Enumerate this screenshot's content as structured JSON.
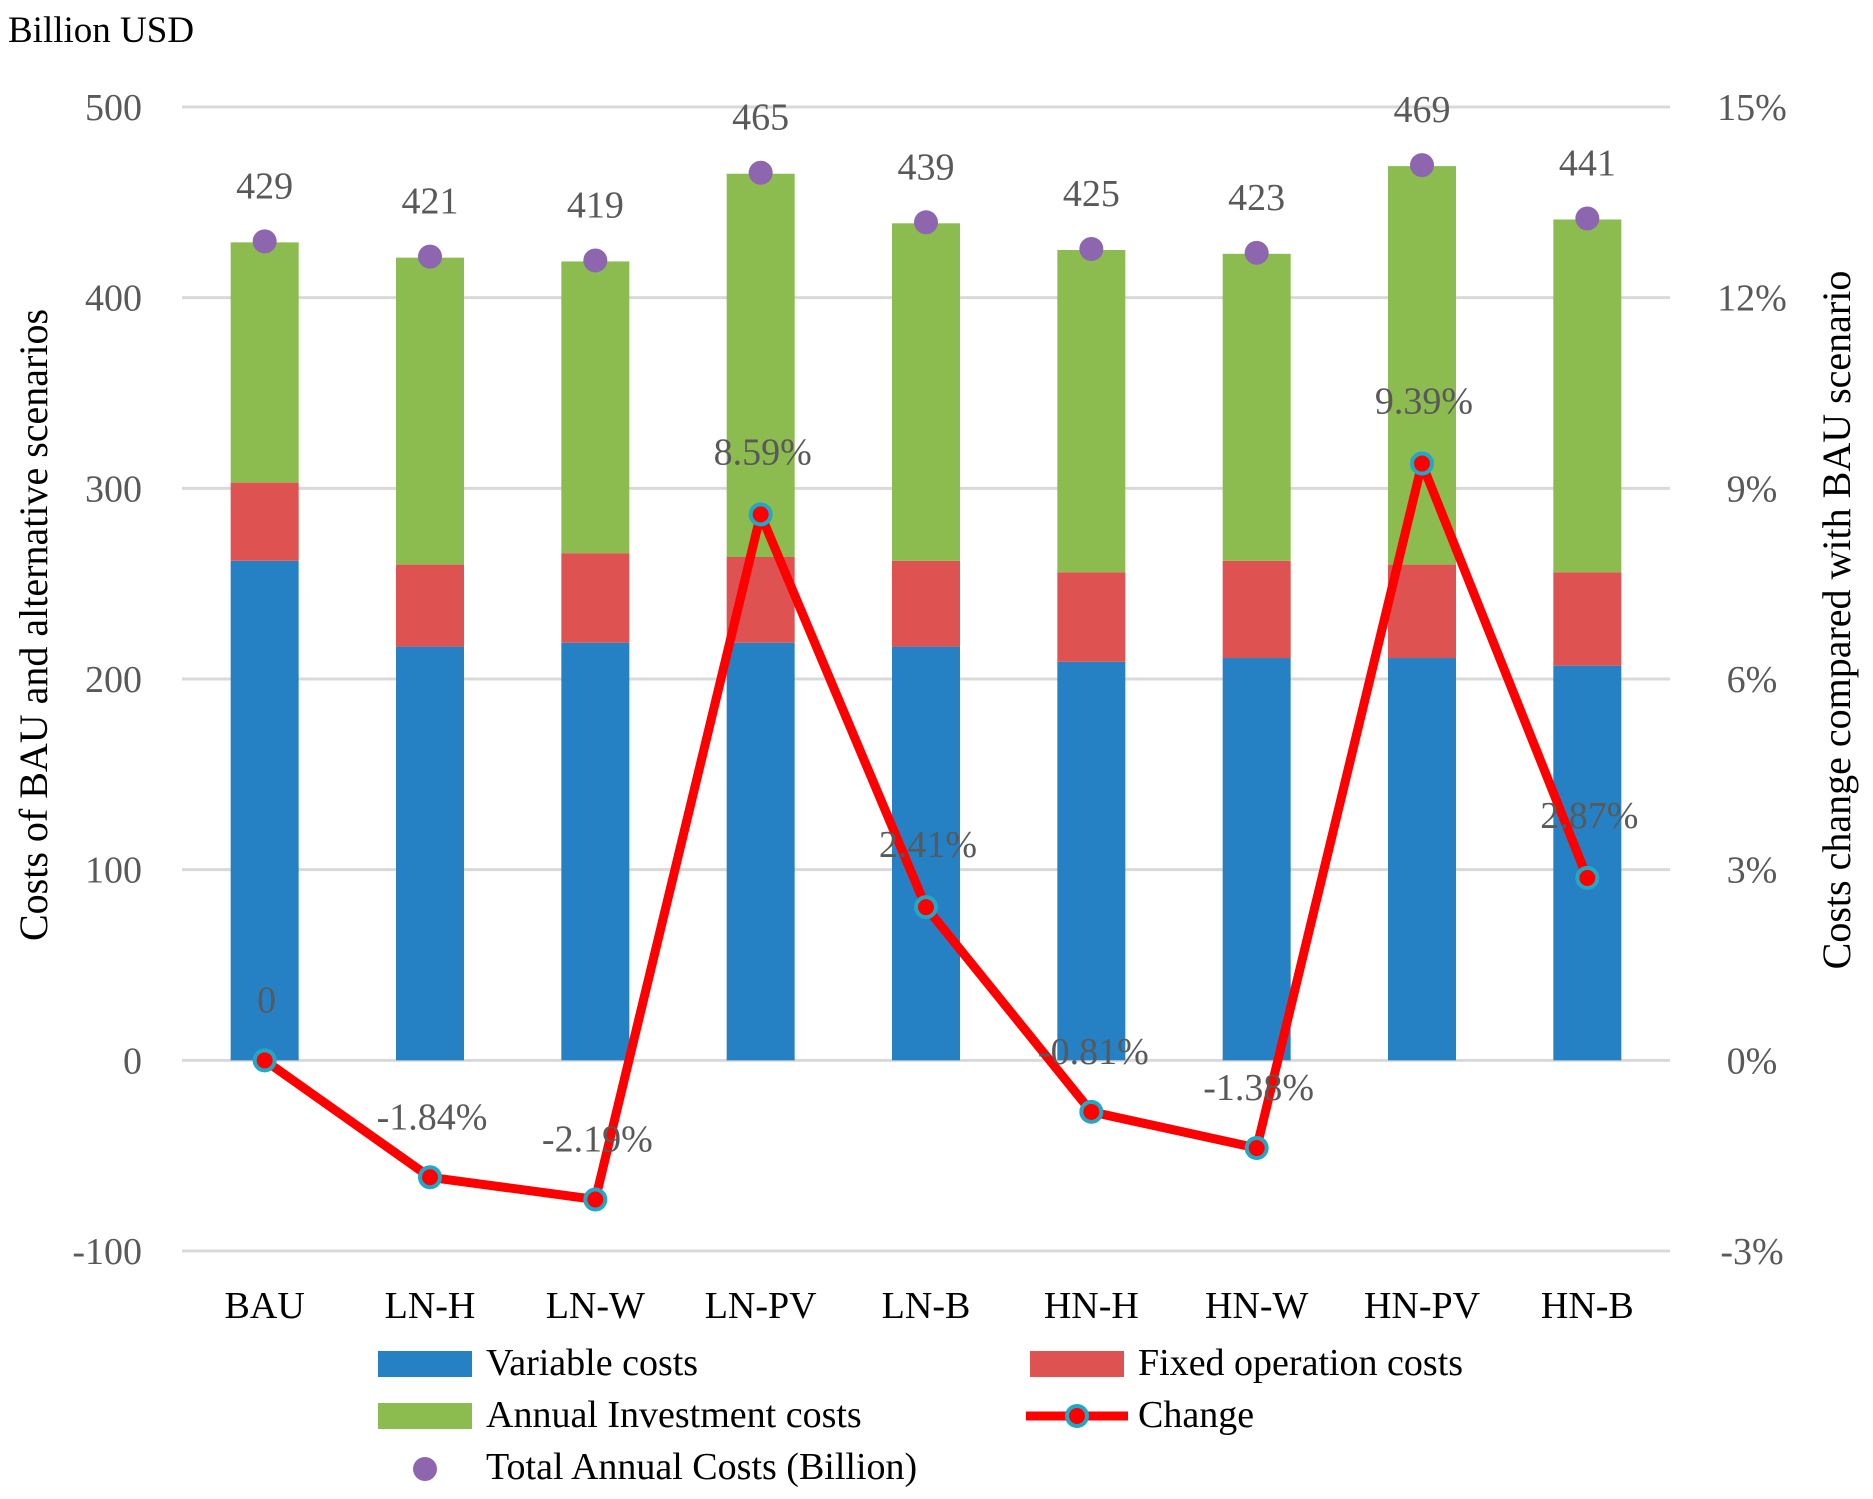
{
  "chart_data": {
    "type": "bar",
    "stacked": true,
    "unit_label": "Billion  USD",
    "ylabel_left": "Costs of  BAU and alternative scenarios",
    "ylabel_right": "Costs change compared with BAU scenario",
    "ylim_left": [
      -100,
      500
    ],
    "yticks_left": [
      500,
      400,
      300,
      200,
      100,
      0,
      -100
    ],
    "ylim_right": [
      -3,
      15
    ],
    "yticks_right": [
      "15%",
      "12%",
      "9%",
      "6%",
      "3%",
      "0%",
      "-3%"
    ],
    "yticks_right_values": [
      15,
      12,
      9,
      6,
      3,
      0,
      -3
    ],
    "grid": true,
    "categories": [
      "BAU",
      "LN-H",
      "LN-W",
      "LN-PV",
      "LN-B",
      "HN-H",
      "HN-W",
      "HN-PV",
      "HN-B"
    ],
    "series": [
      {
        "name": "Variable costs",
        "color": "#2581c4",
        "values": [
          262,
          217,
          219,
          219,
          217,
          209,
          211,
          211,
          207
        ]
      },
      {
        "name": "Fixed operation costs",
        "color": "#de5352",
        "values": [
          41,
          43,
          47,
          45,
          45,
          47,
          51,
          49,
          49
        ]
      },
      {
        "name": "Annual Investment costs",
        "color": "#8cbb50",
        "values": [
          126,
          161,
          153,
          201,
          177,
          169,
          161,
          209,
          185
        ]
      }
    ],
    "totals": {
      "name": "Total Annual Costs (Billion)",
      "color": "#8e66b0",
      "values": [
        429,
        421,
        419,
        465,
        439,
        425,
        423,
        469,
        441
      ],
      "labels": [
        "429",
        "421",
        "419",
        "465",
        "439",
        "425",
        "423",
        "469",
        "441"
      ]
    },
    "change": {
      "name": "Change",
      "axis": "right",
      "line_color": "#ff0000",
      "marker_fill": "#ff0000",
      "marker_edge": "#1fa9c6",
      "values": [
        0,
        -1.84,
        -2.19,
        8.59,
        2.41,
        -0.81,
        -1.38,
        9.39,
        2.87
      ],
      "labels": [
        "0",
        "-1.84%",
        "-2.19%",
        "8.59%",
        "2.41%",
        "-0.81%",
        "-1.38%",
        "9.39%",
        "2.87%"
      ]
    },
    "legend": {
      "position": "bottom",
      "items": [
        {
          "key": "variable",
          "label": "Variable costs",
          "kind": "bar",
          "color": "#2581c4"
        },
        {
          "key": "fixed",
          "label": "Fixed operation costs",
          "kind": "bar",
          "color": "#de5352"
        },
        {
          "key": "investment",
          "label": "Annual Investment costs",
          "kind": "bar",
          "color": "#8cbb50"
        },
        {
          "key": "change",
          "label": "Change",
          "kind": "line"
        },
        {
          "key": "total",
          "label": "Total Annual Costs (Billion)",
          "kind": "marker",
          "color": "#8e66b0"
        }
      ]
    },
    "colors": {
      "grid": "#d9d9d9",
      "axis_text": "#595959",
      "text": "#000000"
    }
  }
}
